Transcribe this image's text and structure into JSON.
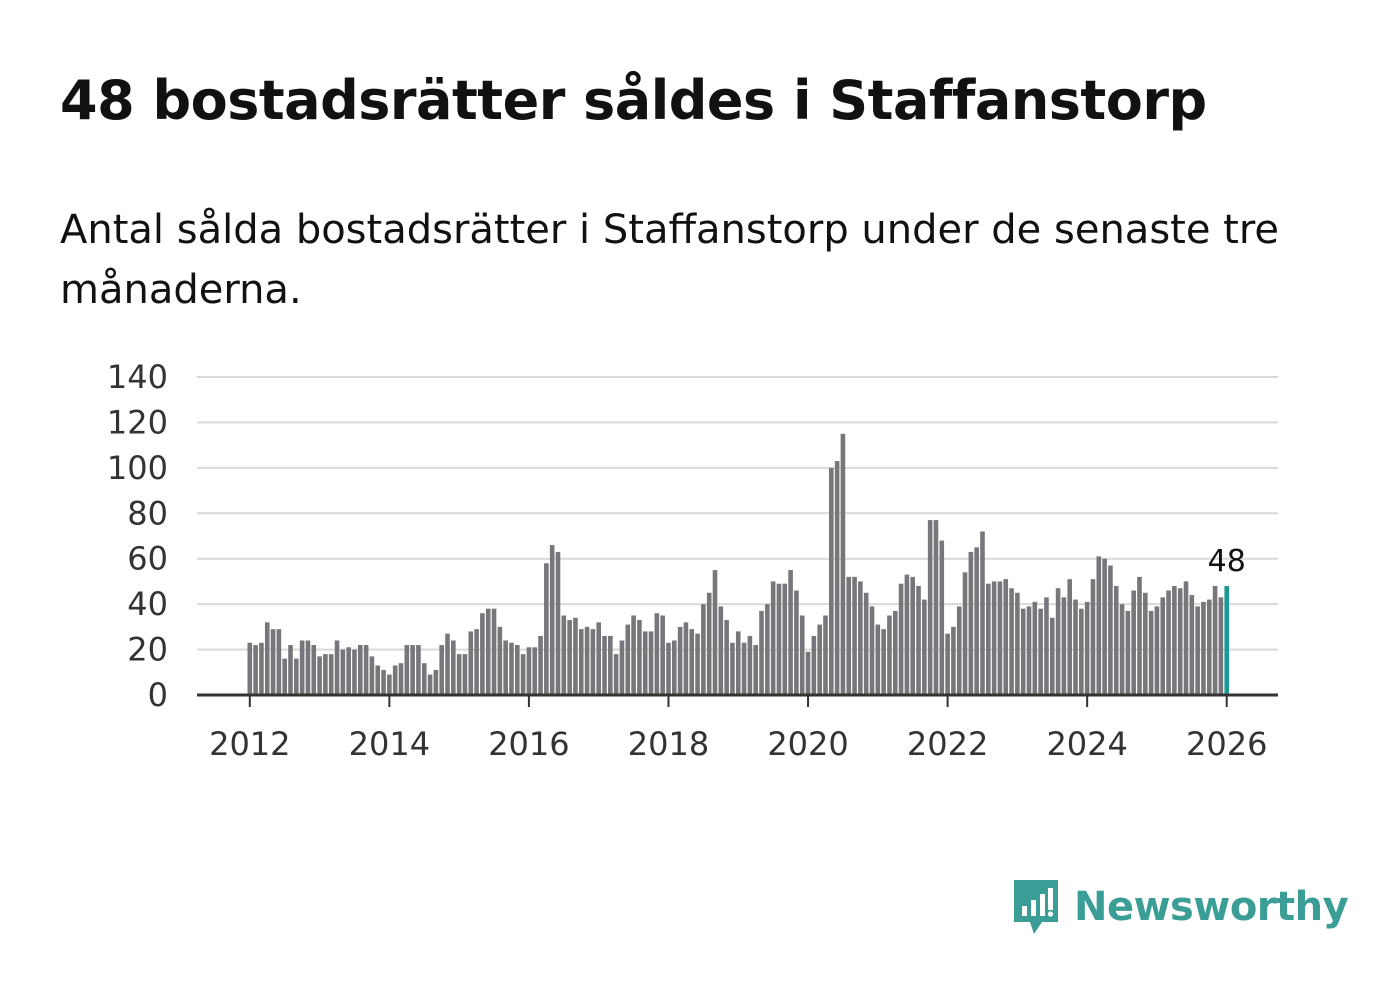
{
  "title": "48 bostadsrätter såldes i Staffanstorp",
  "subtitle": "Antal sålda bostadsrätter i Staffanstorp under de senaste tre månaderna.",
  "brand": {
    "name": "Newsworthy",
    "color": "#3a9e97",
    "icon": "newsworthy-logo-icon"
  },
  "colors": {
    "bar": "#77767b",
    "highlight": "#1a9a92",
    "grid": "#d9d9d9",
    "axis": "#333333"
  },
  "chart_data": {
    "type": "bar",
    "title": "",
    "xlabel": "",
    "ylabel": "",
    "ylim": [
      0,
      140
    ],
    "y_ticks": [
      "0",
      "20",
      "40",
      "60",
      "80",
      "100",
      "120",
      "140"
    ],
    "x_ticks": [
      "2012",
      "2014",
      "2016",
      "2018",
      "2020",
      "2022",
      "2024",
      "2026"
    ],
    "start": "2012-01",
    "highlight_label": "48",
    "values": [
      23,
      22,
      23,
      32,
      29,
      29,
      16,
      22,
      16,
      24,
      24,
      22,
      17,
      18,
      18,
      24,
      20,
      21,
      20,
      22,
      22,
      17,
      13,
      11,
      9,
      13,
      14,
      22,
      22,
      22,
      14,
      9,
      11,
      22,
      27,
      24,
      18,
      18,
      28,
      29,
      36,
      38,
      38,
      30,
      24,
      23,
      22,
      18,
      21,
      21,
      26,
      58,
      66,
      63,
      35,
      33,
      34,
      29,
      30,
      29,
      32,
      26,
      26,
      18,
      24,
      31,
      35,
      33,
      28,
      28,
      36,
      35,
      23,
      24,
      30,
      32,
      29,
      27,
      40,
      45,
      55,
      39,
      33,
      23,
      28,
      23,
      26,
      22,
      37,
      40,
      50,
      49,
      49,
      55,
      46,
      35,
      19,
      26,
      31,
      35,
      100,
      103,
      115,
      52,
      52,
      50,
      45,
      39,
      31,
      29,
      35,
      37,
      49,
      53,
      52,
      48,
      42,
      77,
      77,
      68,
      27,
      30,
      39,
      54,
      63,
      65,
      72,
      49,
      50,
      50,
      51,
      47,
      45,
      38,
      39,
      41,
      38,
      43,
      34,
      47,
      43,
      51,
      42,
      38,
      41,
      51,
      61,
      60,
      57,
      48,
      40,
      37,
      46,
      52,
      45,
      37,
      39,
      43,
      46,
      48,
      47,
      50,
      44,
      39,
      41,
      42,
      48,
      43,
      48
    ]
  }
}
